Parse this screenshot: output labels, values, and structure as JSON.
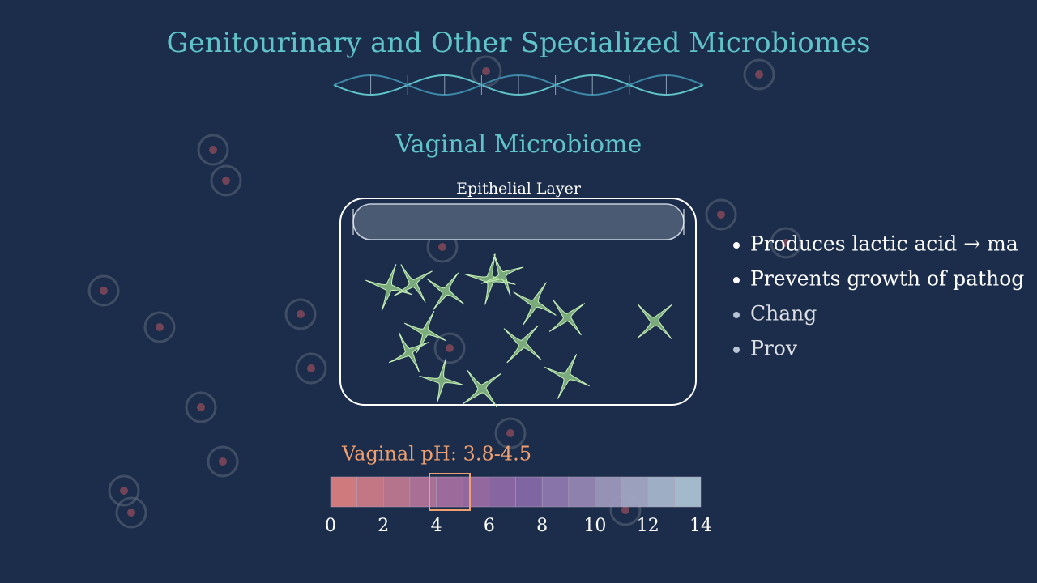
{
  "header": {
    "title": "Genitourinary and Other Specialized Microbiomes",
    "subtitle": "Vaginal Microbiome"
  },
  "diagram": {
    "layer_label": "Epithelial Layer"
  },
  "bullets": [
    "Produces lactic acid → ma",
    "Prevents growth of pathog",
    "Chang",
    "Prov"
  ],
  "ph_scale": {
    "label": "Vaginal pH: 3.8-4.5",
    "ticks": [
      "0",
      "2",
      "4",
      "6",
      "8",
      "10",
      "12",
      "14"
    ]
  }
}
